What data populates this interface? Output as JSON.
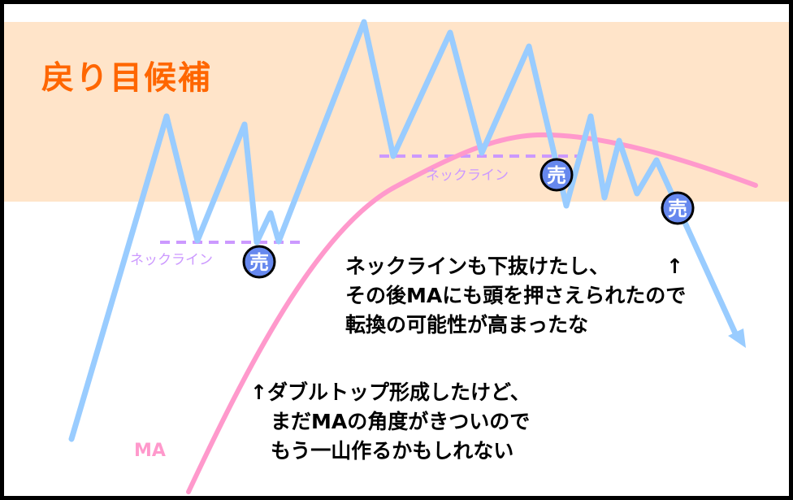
{
  "title": "戻り目候補",
  "zone_color": "#ffe4c9",
  "price_color": "#99ccff",
  "ma_color": "#ff99cc",
  "neckline_color": "#cc99ff",
  "sell_color": "#6688ee",
  "neckline_label_left": "ネックライン",
  "neckline_label_right": "ネックライン",
  "sell_label": "売",
  "ma_label": "MA",
  "note_top": {
    "lines": [
      "ネックラインも下抜けたし、",
      "その後MAにも頭を押さえられたので",
      "転換の可能性が高まったな"
    ],
    "arrow": "↑"
  },
  "note_bottom": {
    "lines": [
      "↑ダブルトップ形成したけど、",
      "まだMAの角度がきついので",
      "もう一山作るかもしれない"
    ]
  }
}
